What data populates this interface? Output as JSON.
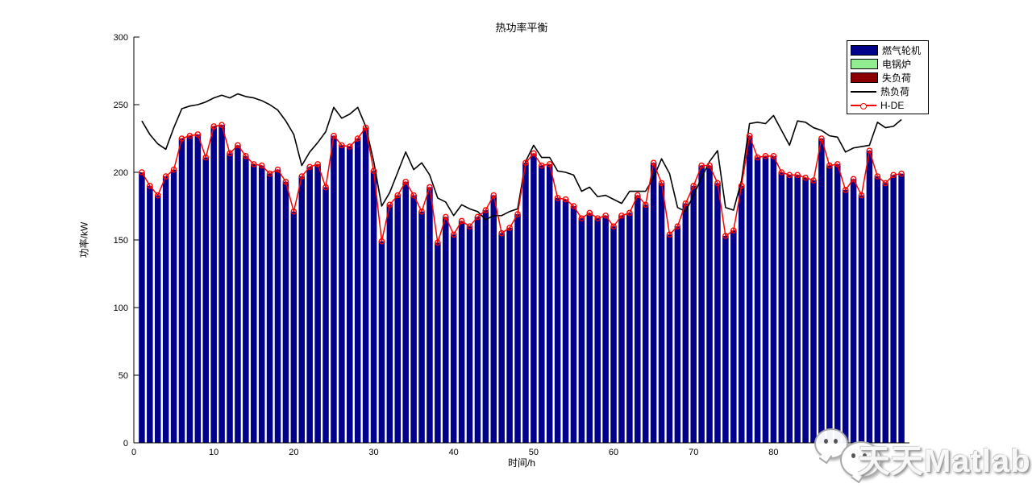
{
  "title": "热功率平衡",
  "watermark": {
    "text": "天天Matlab",
    "icon": "wechat-chat-bubbles"
  },
  "legend": {
    "position": "top-right",
    "entries": [
      {
        "label": "燃气轮机",
        "swatch": "patch",
        "color": "#00008B"
      },
      {
        "label": "电锅炉",
        "swatch": "patch",
        "color": "#90EE90"
      },
      {
        "label": "失负荷",
        "swatch": "patch",
        "color": "#8B0000"
      },
      {
        "label": "热负荷",
        "swatch": "line",
        "color": "#000000"
      },
      {
        "label": "H-DE",
        "swatch": "line-marker",
        "color": "#FF0000"
      }
    ]
  },
  "chart_data": {
    "type": "bar",
    "title": "热功率平衡",
    "xlabel": "时间/h",
    "ylabel": "功率/kW",
    "xlim": [
      0,
      97
    ],
    "ylim": [
      0,
      300
    ],
    "x_ticks": [
      0,
      10,
      20,
      30,
      40,
      50,
      60,
      70,
      80,
      90
    ],
    "y_ticks": [
      0,
      50,
      100,
      150,
      200,
      250,
      300
    ],
    "grid": "off",
    "legend_position": "top-right",
    "x": "hours 1 to 96",
    "series": [
      {
        "name": "燃气轮机",
        "type": "bar",
        "color": "#00008B",
        "values": [
          200,
          190,
          183,
          197,
          202,
          225,
          227,
          228,
          211,
          234,
          235,
          214,
          220,
          212,
          206,
          205,
          199,
          202,
          193,
          171,
          197,
          204,
          206,
          189,
          227,
          220,
          219,
          225,
          233,
          201,
          149,
          176,
          183,
          193,
          183,
          171,
          189,
          148,
          167,
          154,
          164,
          160,
          167,
          172,
          183,
          155,
          159,
          169,
          207,
          214,
          205,
          206,
          181,
          180,
          175,
          166,
          170,
          166,
          168,
          160,
          168,
          170,
          183,
          176,
          207,
          192,
          154,
          160,
          177,
          190,
          205,
          205,
          192,
          153,
          157,
          190,
          227,
          211,
          212,
          212,
          200,
          198,
          198,
          196,
          194,
          225,
          205,
          206,
          187,
          195,
          183,
          216,
          197,
          192,
          198,
          199
        ]
      },
      {
        "name": "电锅炉",
        "type": "bar",
        "color": "#90EE90",
        "values": "zero height (not visible)"
      },
      {
        "name": "失负荷",
        "type": "bar",
        "color": "#8B0000",
        "values": "zero height (not visible)"
      },
      {
        "name": "热负荷",
        "type": "line",
        "color": "#000000",
        "values": [
          238,
          228,
          221,
          217,
          233,
          247,
          249,
          250,
          252,
          255,
          257,
          255,
          258,
          256,
          255,
          253,
          250,
          246,
          238,
          228,
          205,
          215,
          222,
          230,
          248,
          240,
          243,
          248,
          234,
          208,
          175,
          185,
          200,
          215,
          202,
          207,
          198,
          181,
          178,
          168,
          176,
          173,
          171,
          165,
          168,
          168,
          171,
          173,
          208,
          220,
          211,
          211,
          201,
          200,
          198,
          186,
          189,
          182,
          183,
          180,
          177,
          186,
          186,
          186,
          196,
          210,
          199,
          174,
          171,
          183,
          196,
          208,
          216,
          174,
          172,
          194,
          236,
          237,
          236,
          242,
          231,
          220,
          238,
          237,
          233,
          231,
          227,
          226,
          215,
          218,
          219,
          220,
          237,
          233,
          234,
          239
        ]
      },
      {
        "name": "H-DE",
        "type": "line-marker",
        "color": "#FF0000",
        "marker": "circle",
        "values": [
          200,
          190,
          183,
          197,
          202,
          225,
          227,
          228,
          211,
          234,
          235,
          214,
          220,
          212,
          206,
          205,
          199,
          202,
          193,
          171,
          197,
          204,
          206,
          189,
          227,
          220,
          219,
          225,
          233,
          201,
          149,
          176,
          183,
          193,
          183,
          171,
          189,
          148,
          167,
          154,
          164,
          160,
          167,
          172,
          183,
          155,
          159,
          169,
          207,
          214,
          205,
          206,
          181,
          180,
          175,
          166,
          170,
          166,
          168,
          160,
          168,
          170,
          183,
          176,
          207,
          192,
          154,
          160,
          177,
          190,
          205,
          205,
          192,
          153,
          157,
          190,
          227,
          211,
          212,
          212,
          200,
          198,
          198,
          196,
          194,
          225,
          205,
          206,
          187,
          195,
          183,
          216,
          197,
          192,
          198,
          199
        ]
      }
    ]
  }
}
